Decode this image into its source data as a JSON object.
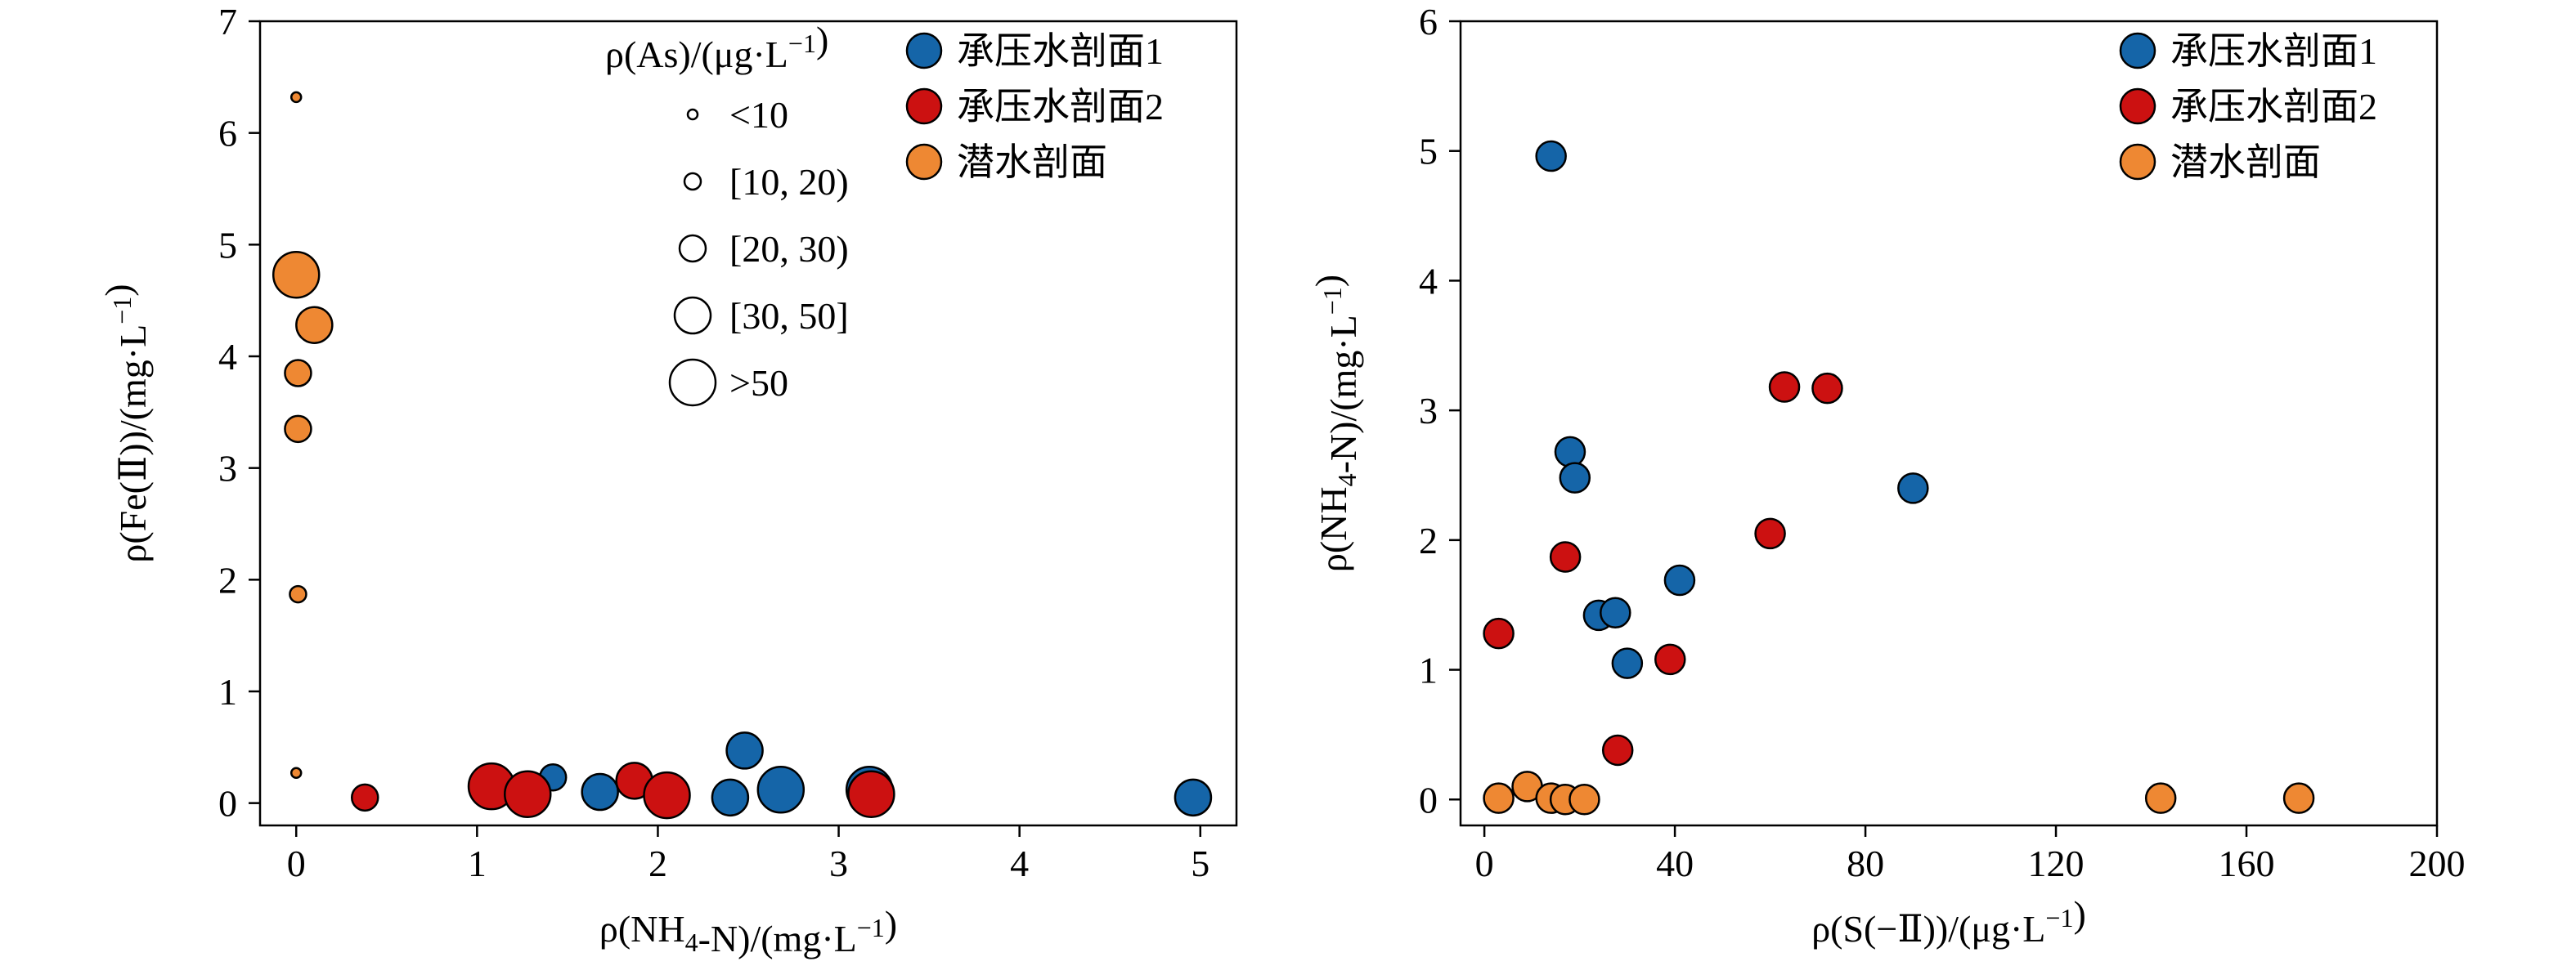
{
  "colors": {
    "series_1": "#1565a8",
    "series_2": "#cc1111",
    "series_3": "#ee8833",
    "size_legend": "#ffffff",
    "stroke": "#000000"
  },
  "chart_data": [
    {
      "type": "scatter",
      "bubble": true,
      "xlabel": "ρ(NH4-N)/(mg·L−1)",
      "ylabel": "ρ(Fe(Ⅱ))/(mg·L−1)",
      "xlim": [
        -0.2,
        5.2
      ],
      "ylim": [
        -0.2,
        7.0
      ],
      "xticks": [
        "0",
        "1",
        "2",
        "3",
        "4",
        "5"
      ],
      "yticks": [
        "0",
        "1",
        "2",
        "3",
        "4",
        "5",
        "6",
        "7"
      ],
      "grid": false,
      "legend_position": "top-right",
      "size_legend": {
        "title": "ρ(As)/(μg·L−1)",
        "classes": [
          "<10",
          "[10, 20)",
          "[20, 30)",
          "[30, 50]",
          ">50"
        ]
      },
      "series": [
        {
          "name": "承压水剖面1",
          "points": [
            {
              "x": 1.05,
              "y": 0.1,
              "as_class": 1
            },
            {
              "x": 1.42,
              "y": 0.23,
              "as_class": 2
            },
            {
              "x": 1.68,
              "y": 0.1,
              "as_class": 3
            },
            {
              "x": 2.4,
              "y": 0.05,
              "as_class": 3
            },
            {
              "x": 2.48,
              "y": 0.47,
              "as_class": 3
            },
            {
              "x": 2.68,
              "y": 0.12,
              "as_class": 4
            },
            {
              "x": 3.17,
              "y": 0.12,
              "as_class": 4
            },
            {
              "x": 4.96,
              "y": 0.05,
              "as_class": 3
            }
          ]
        },
        {
          "name": "承压水剖面2",
          "points": [
            {
              "x": 0.38,
              "y": 0.05,
              "as_class": 2
            },
            {
              "x": 1.08,
              "y": 0.15,
              "as_class": 4
            },
            {
              "x": 1.28,
              "y": 0.08,
              "as_class": 4
            },
            {
              "x": 1.87,
              "y": 0.2,
              "as_class": 3
            },
            {
              "x": 2.05,
              "y": 0.07,
              "as_class": 4
            },
            {
              "x": 3.18,
              "y": 0.08,
              "as_class": 4
            }
          ]
        },
        {
          "name": "潜水剖面",
          "points": [
            {
              "x": 0.0,
              "y": 6.32,
              "as_class": 0
            },
            {
              "x": 0.0,
              "y": 4.73,
              "as_class": 4
            },
            {
              "x": 0.1,
              "y": 4.28,
              "as_class": 3
            },
            {
              "x": 0.01,
              "y": 3.85,
              "as_class": 2
            },
            {
              "x": 0.01,
              "y": 3.35,
              "as_class": 2
            },
            {
              "x": 0.01,
              "y": 1.87,
              "as_class": 1
            },
            {
              "x": 0.0,
              "y": 0.27,
              "as_class": 0
            }
          ]
        }
      ]
    },
    {
      "type": "scatter",
      "xlabel": "ρ(S(−Ⅱ))/(μg·L−1)",
      "ylabel": "ρ(NH4-N)/(mg·L−1)",
      "xlim": [
        -5,
        200
      ],
      "ylim": [
        -0.2,
        6.0
      ],
      "xticks": [
        "0",
        "40",
        "80",
        "120",
        "160",
        "200"
      ],
      "yticks": [
        "0",
        "1",
        "2",
        "3",
        "4",
        "5",
        "6"
      ],
      "grid": false,
      "legend_position": "top-right",
      "series": [
        {
          "name": "承压水剖面1",
          "points": [
            {
              "x": 14,
              "y": 4.96
            },
            {
              "x": 18,
              "y": 2.68
            },
            {
              "x": 19,
              "y": 2.48
            },
            {
              "x": 90,
              "y": 2.4
            },
            {
              "x": 41,
              "y": 1.69
            },
            {
              "x": 24,
              "y": 1.42
            },
            {
              "x": 27.5,
              "y": 1.44
            },
            {
              "x": 30,
              "y": 1.05
            }
          ]
        },
        {
          "name": "承压水剖面2",
          "points": [
            {
              "x": 63,
              "y": 3.18
            },
            {
              "x": 72,
              "y": 3.17
            },
            {
              "x": 60,
              "y": 2.05
            },
            {
              "x": 17,
              "y": 1.87
            },
            {
              "x": 3,
              "y": 1.28
            },
            {
              "x": 39,
              "y": 1.08
            },
            {
              "x": 28,
              "y": 0.38
            }
          ]
        },
        {
          "name": "潜水剖面",
          "points": [
            {
              "x": 3,
              "y": 0.01
            },
            {
              "x": 9,
              "y": 0.1
            },
            {
              "x": 14,
              "y": 0.01
            },
            {
              "x": 17,
              "y": 0.0
            },
            {
              "x": 21,
              "y": 0.0
            },
            {
              "x": 142,
              "y": 0.01
            },
            {
              "x": 171,
              "y": 0.01
            }
          ]
        }
      ]
    }
  ]
}
